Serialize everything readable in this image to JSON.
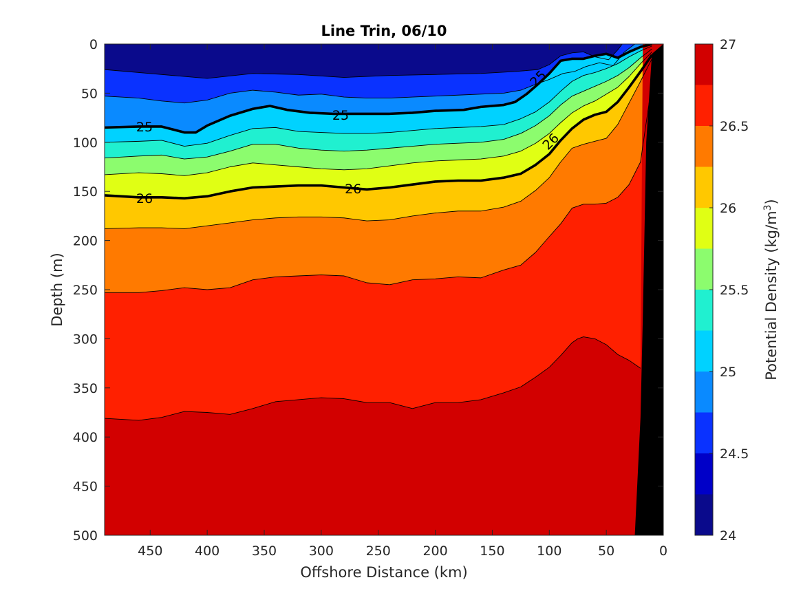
{
  "chart_data": {
    "type": "contourf",
    "title": "Line Trin, 06/10",
    "xlabel": "Offshore Distance (km)",
    "ylabel": "Depth (m)",
    "xlim": [
      490,
      0
    ],
    "ylim": [
      500,
      0
    ],
    "x_reversed": true,
    "y_reversed": true,
    "xticks": [
      450,
      400,
      350,
      300,
      250,
      200,
      150,
      100,
      50,
      0
    ],
    "yticks": [
      0,
      50,
      100,
      150,
      200,
      250,
      300,
      350,
      400,
      450,
      500
    ],
    "colorbar": {
      "label_main": "Potential Density (kg/m",
      "label_sup": "3",
      "label_tail": ")",
      "levels": [
        24,
        24.25,
        24.5,
        24.75,
        25,
        25.25,
        25.5,
        25.75,
        26,
        26.25,
        26.5,
        26.75,
        27
      ],
      "ticks": [
        24,
        24.5,
        25,
        25.5,
        26,
        26.5,
        27
      ],
      "colors": [
        "#0a0a8c",
        "#0000c8",
        "#0a32ff",
        "#0a8aff",
        "#00d2ff",
        "#20f0d0",
        "#8cfc6e",
        "#e0ff14",
        "#ffc800",
        "#ff7a00",
        "#ff2000",
        "#d20000"
      ]
    },
    "contour_lines": [
      {
        "level": 24.5,
        "x": [
          490,
          440,
          400,
          360,
          320,
          280,
          240,
          200,
          160,
          130,
          110,
          100,
          90,
          80,
          70,
          60,
          48,
          40,
          36
        ],
        "y": [
          26,
          31,
          35,
          30,
          31,
          34,
          32,
          31,
          30,
          28,
          26,
          21,
          12,
          9,
          8,
          13,
          16,
          6,
          0
        ]
      },
      {
        "level": 24.75,
        "x": [
          490,
          460,
          440,
          420,
          400,
          380,
          360,
          340,
          320,
          300,
          280,
          260,
          240,
          220,
          200,
          180,
          160,
          140,
          125,
          112,
          100,
          88,
          78,
          68,
          56,
          44,
          34,
          25
        ],
        "y": [
          53,
          55,
          58,
          60,
          57,
          50,
          47,
          49,
          52,
          51,
          54,
          55,
          55,
          54,
          53,
          52,
          51,
          50,
          47,
          41,
          36,
          30,
          28,
          23,
          19,
          22,
          8,
          0
        ]
      },
      {
        "level": 25,
        "x": [
          490,
          460,
          440,
          420,
          410,
          400,
          380,
          360,
          345,
          330,
          310,
          290,
          260,
          240,
          220,
          200,
          175,
          160,
          140,
          130,
          120,
          110,
          100,
          90,
          80,
          70,
          60,
          50,
          40,
          30,
          20,
          10
        ],
        "y": [
          85,
          84,
          84,
          90,
          90,
          83,
          73,
          66,
          63,
          67,
          70,
          71,
          71,
          71,
          70,
          68,
          67,
          64,
          62,
          59,
          51,
          41,
          30,
          17,
          15,
          15,
          12,
          10,
          14,
          8,
          3,
          0
        ]
      },
      {
        "level": 25.25,
        "x": [
          490,
          460,
          440,
          420,
          400,
          380,
          360,
          340,
          320,
          300,
          280,
          260,
          240,
          220,
          200,
          180,
          160,
          140,
          125,
          112,
          100,
          90,
          80,
          70,
          60,
          50,
          40,
          30,
          20,
          10
        ],
        "y": [
          100,
          99,
          98,
          104,
          101,
          93,
          86,
          85,
          89,
          90,
          91,
          91,
          90,
          88,
          86,
          85,
          84,
          82,
          76,
          69,
          59,
          48,
          38,
          32,
          29,
          25,
          20,
          13,
          7,
          2
        ]
      },
      {
        "level": 25.5,
        "x": [
          490,
          460,
          440,
          420,
          400,
          380,
          360,
          340,
          320,
          300,
          280,
          260,
          240,
          220,
          200,
          180,
          160,
          140,
          125,
          112,
          100,
          90,
          80,
          70,
          60,
          50,
          40,
          30,
          20,
          10
        ],
        "y": [
          116,
          114,
          113,
          117,
          115,
          109,
          102,
          102,
          106,
          108,
          109,
          108,
          106,
          104,
          102,
          101,
          100,
          97,
          91,
          83,
          73,
          62,
          53,
          48,
          43,
          38,
          32,
          24,
          14,
          5
        ]
      },
      {
        "level": 25.75,
        "x": [
          490,
          460,
          440,
          420,
          400,
          380,
          360,
          340,
          320,
          300,
          280,
          260,
          240,
          220,
          200,
          180,
          160,
          140,
          125,
          112,
          100,
          90,
          80,
          70,
          60,
          50,
          40,
          30,
          20,
          10
        ],
        "y": [
          133,
          131,
          132,
          134,
          131,
          125,
          121,
          123,
          125,
          127,
          128,
          127,
          124,
          121,
          119,
          118,
          117,
          114,
          109,
          101,
          91,
          80,
          70,
          63,
          58,
          51,
          44,
          33,
          20,
          8
        ]
      },
      {
        "level": 26,
        "x": [
          490,
          460,
          440,
          420,
          400,
          380,
          360,
          340,
          320,
          300,
          280,
          260,
          240,
          220,
          200,
          180,
          160,
          140,
          125,
          112,
          100,
          90,
          80,
          70,
          60,
          50,
          40,
          30,
          20,
          10
        ],
        "y": [
          154,
          156,
          156,
          157,
          155,
          150,
          146,
          145,
          144,
          144,
          146,
          148,
          146,
          143,
          140,
          139,
          139,
          136,
          132,
          123,
          112,
          98,
          86,
          77,
          72,
          69,
          59,
          44,
          28,
          11
        ]
      },
      {
        "level": 26.25,
        "x": [
          490,
          460,
          440,
          420,
          400,
          380,
          360,
          340,
          320,
          300,
          280,
          260,
          240,
          220,
          200,
          180,
          160,
          140,
          125,
          112,
          100,
          90,
          80,
          70,
          60,
          50,
          40,
          30,
          20,
          10
        ],
        "y": [
          188,
          187,
          187,
          188,
          185,
          182,
          179,
          177,
          176,
          176,
          177,
          180,
          179,
          175,
          172,
          170,
          170,
          166,
          160,
          149,
          136,
          120,
          106,
          102,
          99,
          96,
          82,
          60,
          38,
          15
        ]
      },
      {
        "level": 26.5,
        "x": [
          490,
          460,
          440,
          420,
          400,
          380,
          360,
          340,
          320,
          300,
          280,
          260,
          240,
          220,
          200,
          180,
          160,
          140,
          125,
          112,
          100,
          90,
          80,
          70,
          60,
          50,
          40,
          30,
          20,
          10
        ],
        "y": [
          253,
          253,
          251,
          248,
          250,
          248,
          240,
          237,
          236,
          235,
          236,
          243,
          245,
          240,
          239,
          237,
          238,
          230,
          225,
          212,
          196,
          183,
          167,
          163,
          163,
          162,
          156,
          143,
          120,
          40
        ]
      },
      {
        "level": 26.75,
        "x": [
          490,
          460,
          440,
          420,
          400,
          380,
          360,
          340,
          320,
          300,
          280,
          260,
          240,
          220,
          200,
          180,
          160,
          140,
          125,
          112,
          100,
          90,
          80,
          75,
          70,
          60,
          50,
          40,
          30,
          25,
          20
        ],
        "y": [
          381,
          383,
          380,
          374,
          375,
          377,
          371,
          364,
          362,
          360,
          361,
          365,
          365,
          371,
          365,
          365,
          362,
          355,
          349,
          339,
          329,
          317,
          304,
          300,
          298,
          300,
          306,
          316,
          322,
          326,
          330
        ]
      }
    ],
    "bold_levels": [
      25,
      26
    ],
    "contour_labels": [
      {
        "text": "25",
        "x": 455,
        "y": 84,
        "angle": 0
      },
      {
        "text": "25",
        "x": 283,
        "y": 72,
        "angle": 0
      },
      {
        "text": "25",
        "x": 110,
        "y": 35,
        "angle": -45
      },
      {
        "text": "26",
        "x": 455,
        "y": 157,
        "angle": 0
      },
      {
        "text": "26",
        "x": 272,
        "y": 147,
        "angle": 0
      },
      {
        "text": "26",
        "x": 99,
        "y": 99,
        "angle": -45
      }
    ],
    "bathymetry": {
      "color": "#000000",
      "x": [
        0,
        10,
        25,
        25,
        30,
        40,
        50,
        60,
        70,
        80,
        90,
        100
      ],
      "y": [
        10,
        20,
        500,
        500,
        500,
        500,
        500,
        500,
        500,
        500,
        500,
        500
      ]
    },
    "seafloor_x": [
      10,
      15,
      18,
      20,
      25
    ],
    "seafloor_y": [
      10,
      100,
      280,
      380,
      500
    ]
  }
}
